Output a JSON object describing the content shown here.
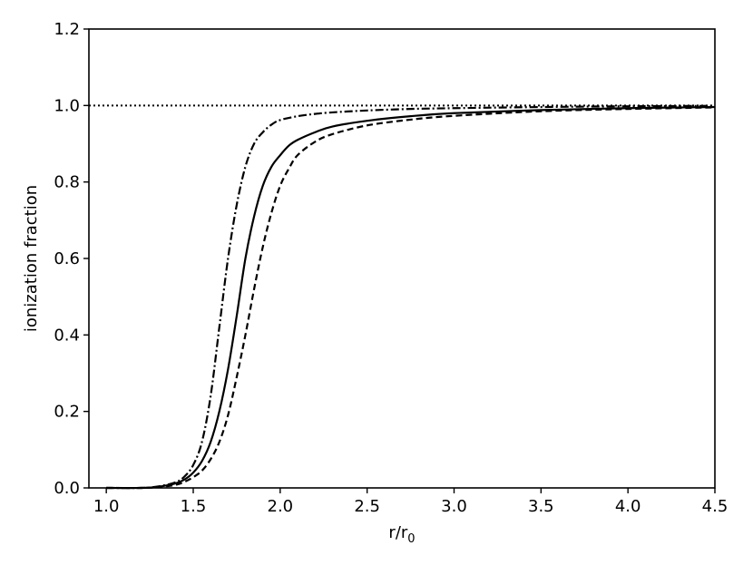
{
  "chart_data": {
    "type": "line",
    "xlabel": "r/r",
    "xlabel_sub": "0",
    "ylabel": "ionization fraction",
    "xlim": [
      0.9,
      4.5
    ],
    "ylim": [
      0.0,
      1.2
    ],
    "xticks": [
      "1.0",
      "1.5",
      "2.0",
      "2.5",
      "3.0",
      "3.5",
      "4.0",
      "4.5"
    ],
    "yticks": [
      "0.0",
      "0.2",
      "0.4",
      "0.6",
      "0.8",
      "1.0",
      "1.2"
    ],
    "grid": false,
    "reference_line": {
      "y": 1.0,
      "style": "dotted"
    },
    "series": [
      {
        "style": "solid",
        "x": [
          1.0,
          1.2,
          1.3,
          1.4,
          1.45,
          1.5,
          1.55,
          1.6,
          1.65,
          1.7,
          1.75,
          1.8,
          1.85,
          1.9,
          1.95,
          2.0,
          2.05,
          2.1,
          2.2,
          2.3,
          2.5,
          2.75,
          3.0,
          3.5,
          4.0,
          4.5
        ],
        "y": [
          0.0,
          0.0,
          0.003,
          0.012,
          0.022,
          0.04,
          0.07,
          0.12,
          0.2,
          0.31,
          0.45,
          0.6,
          0.71,
          0.79,
          0.84,
          0.87,
          0.895,
          0.91,
          0.93,
          0.945,
          0.96,
          0.972,
          0.98,
          0.988,
          0.993,
          0.996
        ]
      },
      {
        "style": "dashed",
        "x": [
          1.0,
          1.2,
          1.3,
          1.4,
          1.45,
          1.5,
          1.55,
          1.6,
          1.65,
          1.7,
          1.75,
          1.8,
          1.85,
          1.9,
          1.95,
          2.0,
          2.05,
          2.1,
          2.2,
          2.3,
          2.5,
          2.75,
          3.0,
          3.5,
          4.0,
          4.5
        ],
        "y": [
          0.0,
          0.0,
          0.002,
          0.008,
          0.016,
          0.028,
          0.045,
          0.075,
          0.12,
          0.19,
          0.29,
          0.4,
          0.52,
          0.63,
          0.72,
          0.79,
          0.835,
          0.87,
          0.905,
          0.925,
          0.948,
          0.963,
          0.973,
          0.985,
          0.991,
          0.995
        ]
      },
      {
        "style": "dashdot",
        "x": [
          1.0,
          1.2,
          1.3,
          1.4,
          1.45,
          1.5,
          1.55,
          1.6,
          1.65,
          1.7,
          1.75,
          1.8,
          1.85,
          1.9,
          1.95,
          2.0,
          2.1,
          2.2,
          2.3,
          2.5,
          2.75,
          3.0,
          3.5,
          4.0,
          4.5
        ],
        "y": [
          0.0,
          0.0,
          0.004,
          0.015,
          0.03,
          0.06,
          0.12,
          0.24,
          0.42,
          0.6,
          0.74,
          0.84,
          0.9,
          0.93,
          0.95,
          0.962,
          0.972,
          0.978,
          0.982,
          0.987,
          0.991,
          0.993,
          0.996,
          0.998,
          0.999
        ]
      }
    ]
  }
}
